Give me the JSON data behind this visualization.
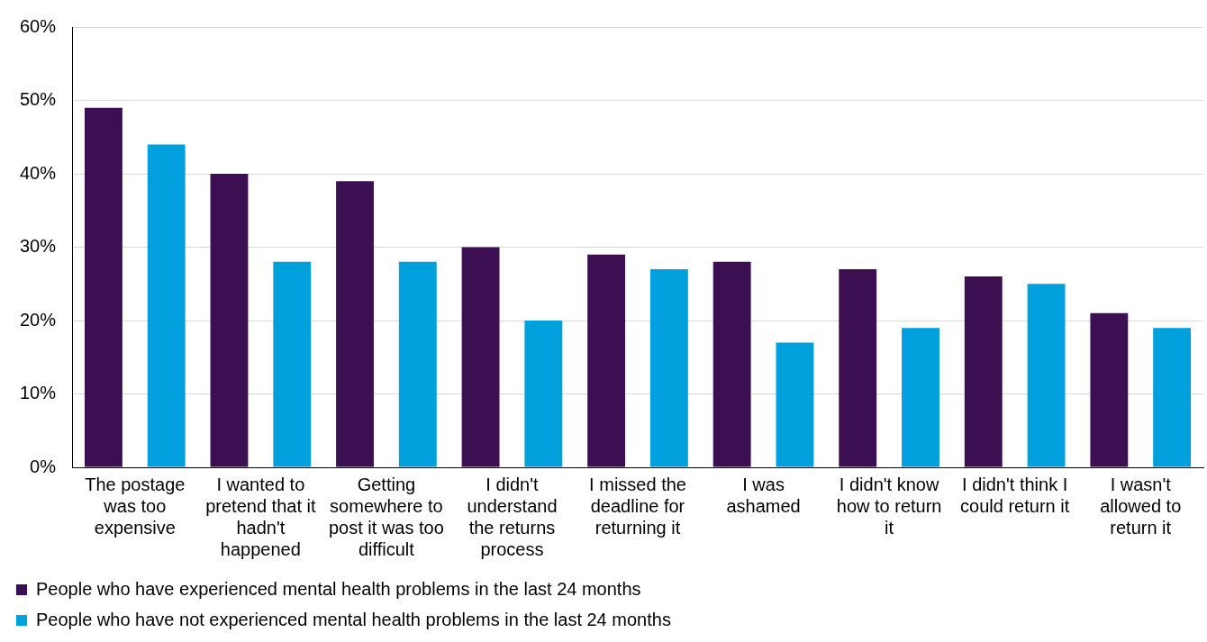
{
  "chart_data": {
    "type": "bar",
    "categories": [
      "The postage was too expensive",
      "I wanted to pretend that it hadn't happened",
      "Getting somewhere to post it was too difficult",
      "I didn't understand the returns process",
      "I missed the deadline for returning it",
      "I was ashamed",
      "I didn't know how to return it",
      "I didn't think I could return it",
      "I wasn't allowed to return it"
    ],
    "series": [
      {
        "name": "People who have experienced mental health problems in the last 24 months",
        "color": "#3b0f52",
        "values": [
          49,
          40,
          39,
          30,
          29,
          28,
          27,
          26,
          21
        ]
      },
      {
        "name": "People who have not experienced mental health problems in the last 24 months",
        "color": "#00a0dc",
        "values": [
          44,
          28,
          28,
          20,
          27,
          17,
          19,
          25,
          19
        ]
      }
    ],
    "ylim": [
      0,
      60
    ],
    "yticks": [
      {
        "value": 0,
        "label": "0%"
      },
      {
        "value": 10,
        "label": "10%"
      },
      {
        "value": 20,
        "label": "20%"
      },
      {
        "value": 30,
        "label": "30%"
      },
      {
        "value": 40,
        "label": "40%"
      },
      {
        "value": 50,
        "label": "50%"
      },
      {
        "value": 60,
        "label": "60%"
      }
    ],
    "grid": "y",
    "legend": "bottom"
  }
}
